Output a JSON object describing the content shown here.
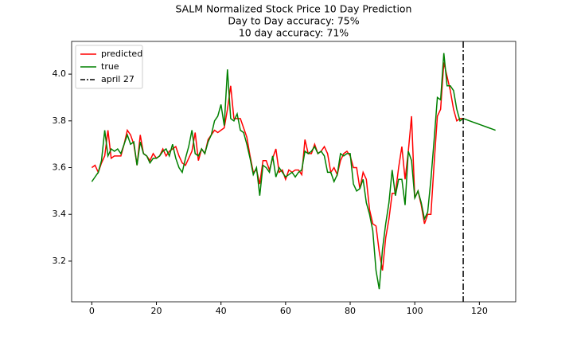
{
  "chart_data": {
    "type": "line",
    "title": "SALM Normalized Stock Price 10 Day Prediction",
    "subtitle": [
      "Day to Day accuracy: 75%",
      "10 day accuracy: 71%"
    ],
    "x": [
      0,
      1,
      2,
      3,
      4,
      5,
      6,
      7,
      8,
      9,
      10,
      11,
      12,
      13,
      14,
      15,
      16,
      17,
      18,
      19,
      20,
      21,
      22,
      23,
      24,
      25,
      26,
      27,
      28,
      29,
      30,
      31,
      32,
      33,
      34,
      35,
      36,
      37,
      38,
      39,
      40,
      41,
      42,
      43,
      44,
      45,
      46,
      47,
      48,
      49,
      50,
      51,
      52,
      53,
      54,
      55,
      56,
      57,
      58,
      59,
      60,
      61,
      62,
      63,
      64,
      65,
      66,
      67,
      68,
      69,
      70,
      71,
      72,
      73,
      74,
      75,
      76,
      77,
      78,
      79,
      80,
      81,
      82,
      83,
      84,
      85,
      86,
      87,
      88,
      89,
      90,
      91,
      92,
      93,
      94,
      95,
      96,
      97,
      98,
      99,
      100,
      101,
      102,
      103,
      104,
      105,
      106,
      107,
      108,
      109,
      110,
      111,
      112,
      113,
      114,
      115,
      116,
      117,
      118,
      119,
      120,
      121,
      122,
      123,
      124,
      125
    ],
    "series": [
      {
        "name": "predicted",
        "color": "#ff0000",
        "values": [
          3.6,
          3.61,
          3.58,
          3.62,
          3.65,
          3.76,
          3.64,
          3.65,
          3.65,
          3.65,
          3.7,
          3.76,
          3.74,
          3.7,
          3.61,
          3.74,
          3.66,
          3.65,
          3.63,
          3.66,
          3.64,
          3.65,
          3.68,
          3.65,
          3.67,
          3.68,
          3.69,
          3.65,
          3.62,
          3.61,
          3.64,
          3.67,
          3.75,
          3.63,
          3.68,
          3.66,
          3.72,
          3.74,
          3.76,
          3.75,
          3.76,
          3.77,
          3.85,
          3.95,
          3.81,
          3.81,
          3.81,
          3.77,
          3.73,
          3.65,
          3.58,
          3.59,
          3.53,
          3.63,
          3.63,
          3.59,
          3.64,
          3.68,
          3.58,
          3.59,
          3.55,
          3.59,
          3.58,
          3.59,
          3.59,
          3.57,
          3.72,
          3.66,
          3.66,
          3.7,
          3.66,
          3.67,
          3.69,
          3.66,
          3.58,
          3.6,
          3.57,
          3.63,
          3.66,
          3.67,
          3.65,
          3.6,
          3.6,
          3.51,
          3.58,
          3.55,
          3.42,
          3.36,
          3.35,
          3.24,
          3.16,
          3.3,
          3.38,
          3.49,
          3.49,
          3.6,
          3.69,
          3.55,
          3.67,
          3.82,
          3.47,
          3.5,
          3.44,
          3.36,
          3.4,
          3.4,
          3.62,
          3.82,
          3.85,
          4.05,
          3.99,
          3.93,
          3.85,
          3.8,
          3.81,
          3.81,
          null,
          null,
          null,
          null,
          null,
          null,
          null,
          null,
          null,
          null
        ]
      },
      {
        "name": "true",
        "color": "#008000",
        "values": [
          3.54,
          3.56,
          3.58,
          3.63,
          3.76,
          3.65,
          3.68,
          3.67,
          3.68,
          3.66,
          3.7,
          3.74,
          3.7,
          3.71,
          3.61,
          3.71,
          3.66,
          3.65,
          3.62,
          3.64,
          3.64,
          3.65,
          3.67,
          3.68,
          3.65,
          3.7,
          3.64,
          3.6,
          3.58,
          3.64,
          3.69,
          3.76,
          3.66,
          3.65,
          3.68,
          3.66,
          3.71,
          3.74,
          3.8,
          3.82,
          3.87,
          3.78,
          4.02,
          3.81,
          3.8,
          3.83,
          3.76,
          3.75,
          3.7,
          3.64,
          3.57,
          3.6,
          3.48,
          3.61,
          3.6,
          3.58,
          3.65,
          3.56,
          3.6,
          3.58,
          3.56,
          3.57,
          3.58,
          3.56,
          3.58,
          3.59,
          3.67,
          3.66,
          3.67,
          3.69,
          3.66,
          3.67,
          3.65,
          3.58,
          3.58,
          3.54,
          3.57,
          3.66,
          3.65,
          3.66,
          3.66,
          3.53,
          3.5,
          3.51,
          3.55,
          3.45,
          3.4,
          3.33,
          3.16,
          3.08,
          3.25,
          3.36,
          3.45,
          3.59,
          3.48,
          3.55,
          3.55,
          3.44,
          3.67,
          3.63,
          3.47,
          3.5,
          3.45,
          3.38,
          3.41,
          3.55,
          3.72,
          3.9,
          3.89,
          4.09,
          3.95,
          3.95,
          3.93,
          3.85,
          3.8,
          3.81,
          3.805,
          3.8,
          3.795,
          3.79,
          3.785,
          3.78,
          3.775,
          3.77,
          3.765,
          3.76
        ]
      }
    ],
    "vline": {
      "name": "april 27",
      "x": 115,
      "color": "#000000"
    },
    "xlim": [
      -6.25,
      131.25
    ],
    "xticks": [
      0,
      20,
      40,
      60,
      80,
      100,
      120
    ],
    "ylim": [
      3.026,
      4.14
    ],
    "yticks": [
      3.2,
      3.4,
      3.6,
      3.8,
      {
        "value": 4,
        "label": "4.0"
      }
    ],
    "legend": "upper left",
    "grid": false
  }
}
